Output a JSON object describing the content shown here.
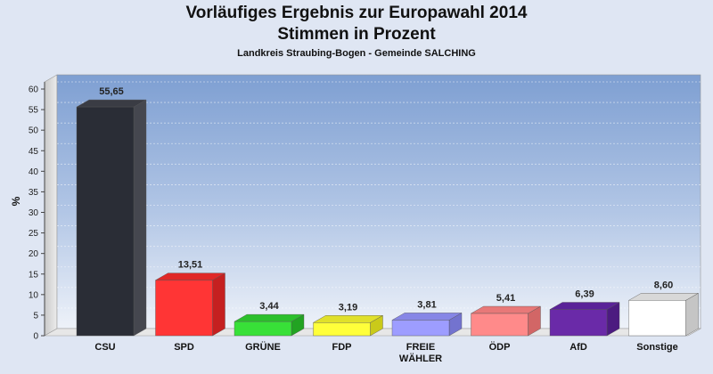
{
  "title": "Vorläufiges Ergebnis zur Europawahl 2014",
  "subtitle": "Stimmen in Prozent",
  "region": "Landkreis Straubing-Bogen - Gemeinde SALCHING",
  "chart_data": {
    "type": "bar",
    "title": "Vorläufiges Ergebnis zur Europawahl 2014",
    "subtitle": "Stimmen in Prozent",
    "xlabel": "",
    "ylabel": "%",
    "ylim": [
      0,
      60
    ],
    "yticks": [
      0,
      5,
      10,
      15,
      20,
      25,
      30,
      35,
      40,
      45,
      50,
      55,
      60
    ],
    "grid": true,
    "legend": "none",
    "categories": [
      "CSU",
      "SPD",
      "GRÜNE",
      "FDP",
      "FREIE WÄHLER",
      "ÖDP",
      "AfD",
      "Sonstige"
    ],
    "category_lines": [
      [
        "CSU"
      ],
      [
        "SPD"
      ],
      [
        "GRÜNE"
      ],
      [
        "FDP"
      ],
      [
        "FREIE",
        "WÄHLER"
      ],
      [
        "ÖDP"
      ],
      [
        "AfD"
      ],
      [
        "Sonstige"
      ]
    ],
    "values": [
      55.65,
      13.51,
      3.44,
      3.19,
      3.81,
      5.41,
      6.39,
      8.6
    ],
    "value_labels": [
      "55,65",
      "13,51",
      "3,44",
      "3,19",
      "3,81",
      "5,41",
      "6,39",
      "8,60"
    ],
    "colors": [
      "#2a2d36",
      "#ff3535",
      "#38e038",
      "#ffff3a",
      "#9d9dff",
      "#ff8a8a",
      "#6a2aa8",
      "#ffffff"
    ],
    "side_colors": [
      "#45474f",
      "#c52020",
      "#22a322",
      "#caca1a",
      "#7373cf",
      "#d26666",
      "#4c1b80",
      "#c5c5c5"
    ],
    "top_colors": [
      "#3a3c44",
      "#e02828",
      "#2cc02c",
      "#e0e02a",
      "#8686e6",
      "#e87878",
      "#5a2298",
      "#d8d8d8"
    ]
  }
}
